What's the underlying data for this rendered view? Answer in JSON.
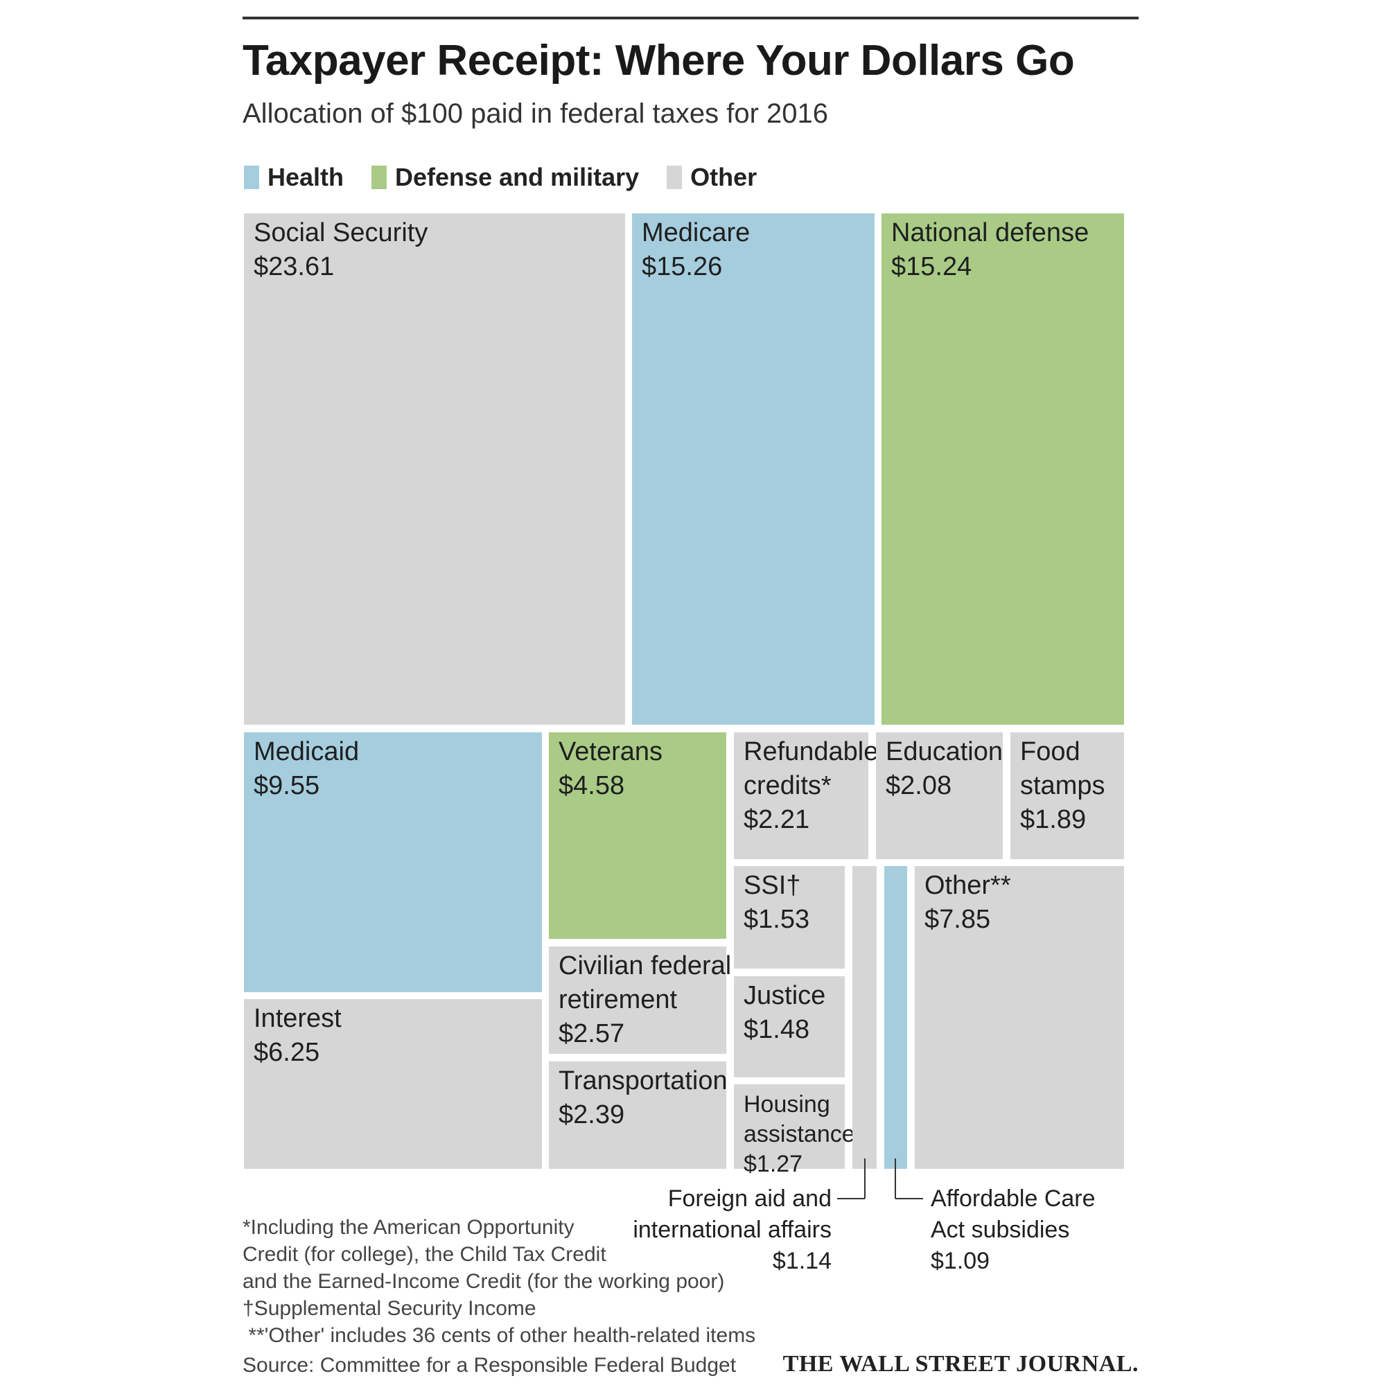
{
  "header": {
    "title": "Taxpayer Receipt: Where Your Dollars Go",
    "subtitle": "Allocation of $100 paid in federal taxes for 2016"
  },
  "legend": [
    {
      "label": "Health",
      "color": "#a5cddd"
    },
    {
      "label": "Defense and military",
      "color": "#a9cb86"
    },
    {
      "label": "Other",
      "color": "#d6d6d6"
    }
  ],
  "chart_data": {
    "type": "treemap",
    "title": "Taxpayer Receipt: Where Your Dollars Go",
    "subtitle": "Allocation of $100 paid in federal taxes for 2016",
    "unit": "$",
    "total": 100,
    "categories": [
      "Health",
      "Defense and military",
      "Other"
    ],
    "items": [
      {
        "name": "Social Security",
        "value": 23.61,
        "value_label": "$23.61",
        "category": "Other"
      },
      {
        "name": "Medicare",
        "value": 15.26,
        "value_label": "$15.26",
        "category": "Health"
      },
      {
        "name": "National defense",
        "value": 15.24,
        "value_label": "$15.24",
        "category": "Defense and military"
      },
      {
        "name": "Medicaid",
        "value": 9.55,
        "value_label": "$9.55",
        "category": "Health"
      },
      {
        "name": "Interest",
        "value": 6.25,
        "value_label": "$6.25",
        "category": "Other"
      },
      {
        "name": "Veterans",
        "value": 4.58,
        "value_label": "$4.58",
        "category": "Defense and military"
      },
      {
        "name": "Civilian federal retirement",
        "value": 2.57,
        "value_label": "$2.57",
        "category": "Other"
      },
      {
        "name": "Transportation",
        "value": 2.39,
        "value_label": "$2.39",
        "category": "Other"
      },
      {
        "name": "Refundable credits*",
        "value": 2.21,
        "value_label": "$2.21",
        "category": "Other"
      },
      {
        "name": "Education",
        "value": 2.08,
        "value_label": "$2.08",
        "category": "Other"
      },
      {
        "name": "Food stamps",
        "value": 1.89,
        "value_label": "$1.89",
        "category": "Other"
      },
      {
        "name": "SSI†",
        "value": 1.53,
        "value_label": "$1.53",
        "category": "Other"
      },
      {
        "name": "Justice",
        "value": 1.48,
        "value_label": "$1.48",
        "category": "Other"
      },
      {
        "name": "Housing assistance",
        "value": 1.27,
        "value_label": "$1.27",
        "category": "Other"
      },
      {
        "name": "Foreign aid and international affairs",
        "value": 1.14,
        "value_label": "$1.14",
        "category": "Other"
      },
      {
        "name": "Affordable Care Act subsidies",
        "value": 1.09,
        "value_label": "$1.09",
        "category": "Health"
      },
      {
        "name": "Other**",
        "value": 7.85,
        "value_label": "$7.85",
        "category": "Other"
      }
    ]
  },
  "footnotes": {
    "lines": [
      "*Including the American Opportunity",
      "Credit (for college), the Child Tax Credit",
      "and the Earned-Income Credit (for the working poor)",
      "†Supplemental Security Income",
      " **'Other' includes 36 cents of other health-related items"
    ],
    "source": "Source: Committee for a Responsible Federal Budget",
    "publisher": "THE WALL STREET JOURNAL."
  }
}
